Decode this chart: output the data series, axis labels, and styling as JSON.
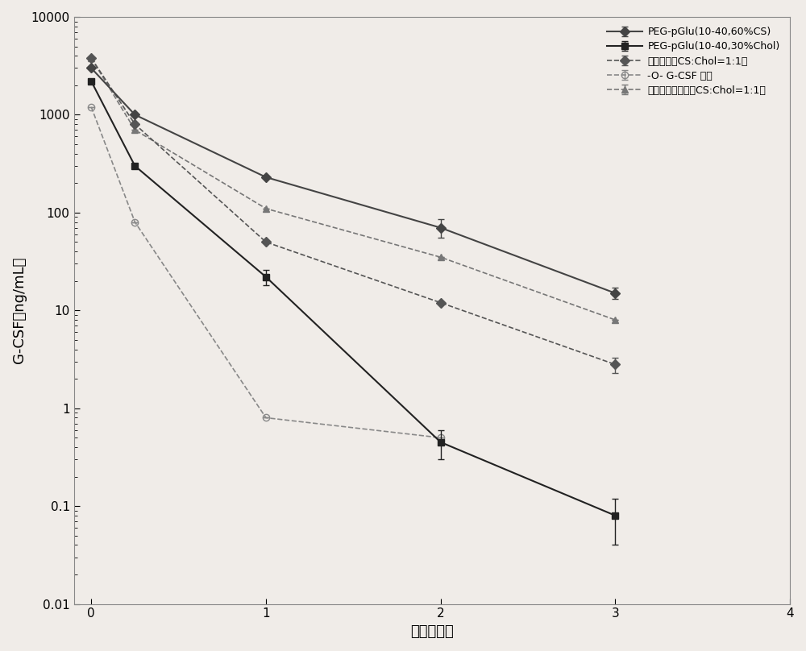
{
  "title": "",
  "xlabel": "时间（日）",
  "ylabel": "G-CSF（ng/mL）",
  "xlim": [
    -0.1,
    4
  ],
  "ylim_log": [
    0.01,
    10000
  ],
  "xticks": [
    0,
    1,
    2,
    3,
    4
  ],
  "series": [
    {
      "label": "PEG-pGlu(10-40,60%CS)",
      "x": [
        0,
        0.25,
        1,
        2,
        3
      ],
      "y": [
        3000,
        1000,
        230,
        70,
        15
      ],
      "yerr_low": [
        0,
        0,
        0,
        15,
        2
      ],
      "yerr_high": [
        0,
        0,
        0,
        15,
        2
      ],
      "color": "#444444",
      "marker": "D",
      "markersize": 6,
      "linestyle": "-",
      "linewidth": 1.5,
      "fillstyle": "full",
      "zorder": 5
    },
    {
      "label": "PEG-pGlu(10-40,30%Chol)",
      "x": [
        0,
        0.25,
        1,
        2,
        3
      ],
      "y": [
        2200,
        300,
        22,
        0.45,
        0.08
      ],
      "yerr_low": [
        0,
        0,
        4,
        0.15,
        0.04
      ],
      "yerr_high": [
        0,
        0,
        4,
        0.15,
        0.04
      ],
      "color": "#222222",
      "marker": "s",
      "markersize": 6,
      "linestyle": "-",
      "linewidth": 1.5,
      "fillstyle": "full",
      "zorder": 4
    },
    {
      "label": "混合微团（CS:Chol=1:1）",
      "x": [
        0,
        0.25,
        1,
        2,
        3
      ],
      "y": [
        3800,
        800,
        50,
        12,
        2.8
      ],
      "yerr_low": [
        0,
        0,
        0,
        0,
        0.5
      ],
      "yerr_high": [
        0,
        0,
        0,
        0,
        0.5
      ],
      "color": "#555555",
      "marker": "D",
      "markersize": 6,
      "linestyle": "--",
      "linewidth": 1.2,
      "fillstyle": "full",
      "zorder": 3
    },
    {
      "label": "-O- G-CSF 溶液",
      "x": [
        0,
        0.25,
        1,
        2
      ],
      "y": [
        1200,
        80,
        0.8,
        0.5
      ],
      "yerr_low": [
        0,
        0,
        0,
        0
      ],
      "yerr_high": [
        0,
        0,
        0,
        0
      ],
      "color": "#888888",
      "marker": "o",
      "markersize": 6,
      "linestyle": "--",
      "linewidth": 1.2,
      "fillstyle": "none",
      "zorder": 2
    },
    {
      "label": "混合微团理论値（CS:Chol=1:1）",
      "x": [
        0,
        0.25,
        1,
        2,
        3
      ],
      "y": [
        3800,
        700,
        110,
        35,
        8
      ],
      "yerr_low": [
        0,
        0,
        0,
        0,
        0
      ],
      "yerr_high": [
        0,
        0,
        0,
        0,
        0
      ],
      "color": "#777777",
      "marker": "^",
      "markersize": 6,
      "linestyle": "--",
      "linewidth": 1.2,
      "fillstyle": "full",
      "zorder": 1
    }
  ],
  "legend_entries": [
    "PEG-pGlu(10-40,60%CS)",
    "PEG-pGlu(10-40,30%Chol)",
    "混合微团（CS:Chol=1:1）",
    "-O- G-CSF 溶液",
    "混合微团理论値（CS:Chol=1:1）"
  ],
  "background_color": "#f0ece8",
  "grid": false,
  "tick_fontsize": 11,
  "label_fontsize": 13
}
